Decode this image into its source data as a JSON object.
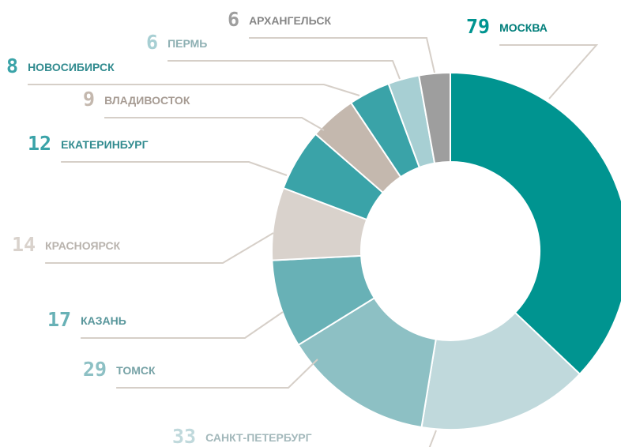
{
  "chart_data": {
    "type": "donut",
    "categories": [
      "МОСКВА",
      "САНКТ-ПЕТЕРБУРГ",
      "ТОМСК",
      "КАЗАНЬ",
      "КРАСНОЯРСК",
      "ЕКАТЕРИНБУРГ",
      "ВЛАДИВОСТОК",
      "НОВОСИБИРСК",
      "ПЕРМЬ",
      "АРХАНГЕЛЬСК"
    ],
    "values": [
      79,
      33,
      29,
      17,
      14,
      12,
      9,
      8,
      6,
      6
    ],
    "colors": [
      "#009490",
      "#c0d9dc",
      "#8dc0c4",
      "#68b1b6",
      "#d9d2cc",
      "#3aa3a8",
      "#c4b8ae",
      "#3aa3a8",
      "#a7cfd3",
      "#9e9e9e"
    ]
  }
}
